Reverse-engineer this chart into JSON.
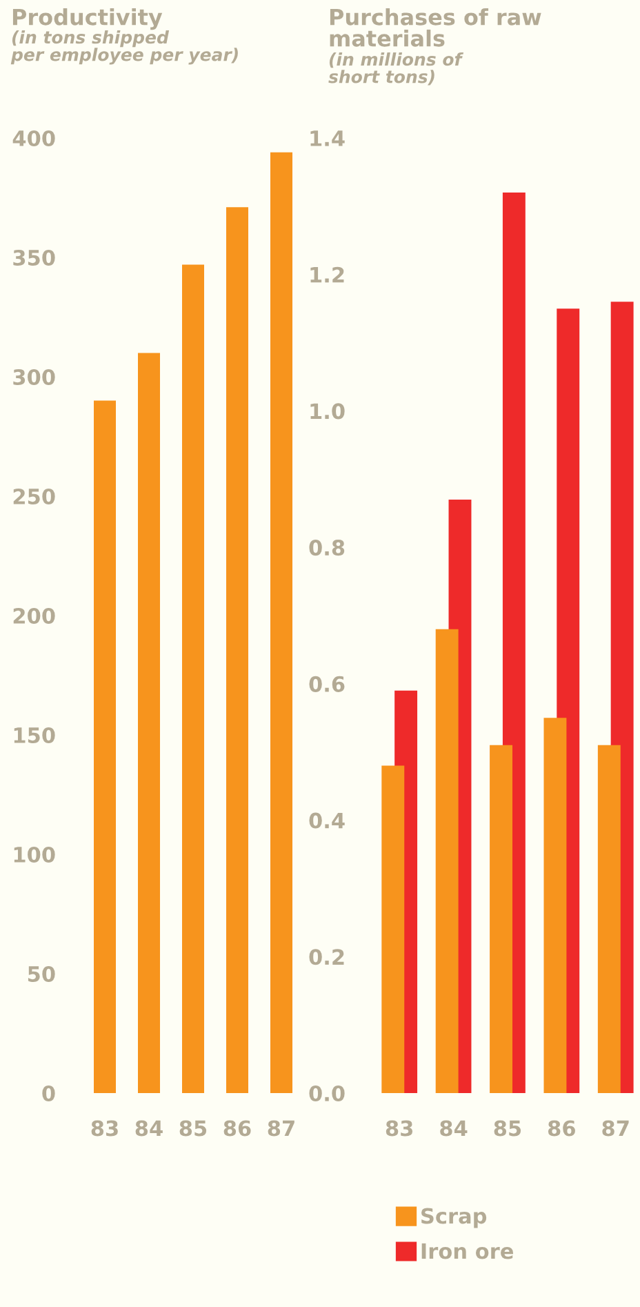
{
  "chart_data": [
    {
      "type": "bar",
      "title": "Productivity",
      "subtitle": "(in tons shipped\nper employee per year)",
      "categories": [
        "83",
        "84",
        "85",
        "86",
        "87"
      ],
      "series": [
        {
          "color": "#f7941d",
          "values": [
            290,
            310,
            347,
            371,
            394
          ]
        }
      ],
      "ylim": [
        0,
        400
      ],
      "yticks": [
        0,
        50,
        100,
        150,
        200,
        250,
        300,
        350,
        400
      ],
      "grid": false,
      "legend": false
    },
    {
      "type": "bar",
      "title": "Purchases of raw\nmaterials",
      "subtitle": "(in millions of\nshort tons)",
      "categories": [
        "83",
        "84",
        "85",
        "86",
        "87"
      ],
      "series": [
        {
          "name": "Scrap",
          "color": "#f7941d",
          "values": [
            0.48,
            0.68,
            0.51,
            0.55,
            0.51
          ]
        },
        {
          "name": "Iron ore",
          "color": "#ee2a2a",
          "values": [
            0.59,
            0.87,
            1.32,
            1.15,
            1.16
          ]
        }
      ],
      "ylim": [
        0,
        1.4
      ],
      "yticks": [
        {
          "value": 0,
          "label": "0.0"
        },
        0.2,
        0.4,
        0.6,
        0.8,
        {
          "value": 1,
          "label": "1.0"
        },
        1.2,
        1.4
      ],
      "grid": false,
      "legend": "bottom"
    }
  ]
}
